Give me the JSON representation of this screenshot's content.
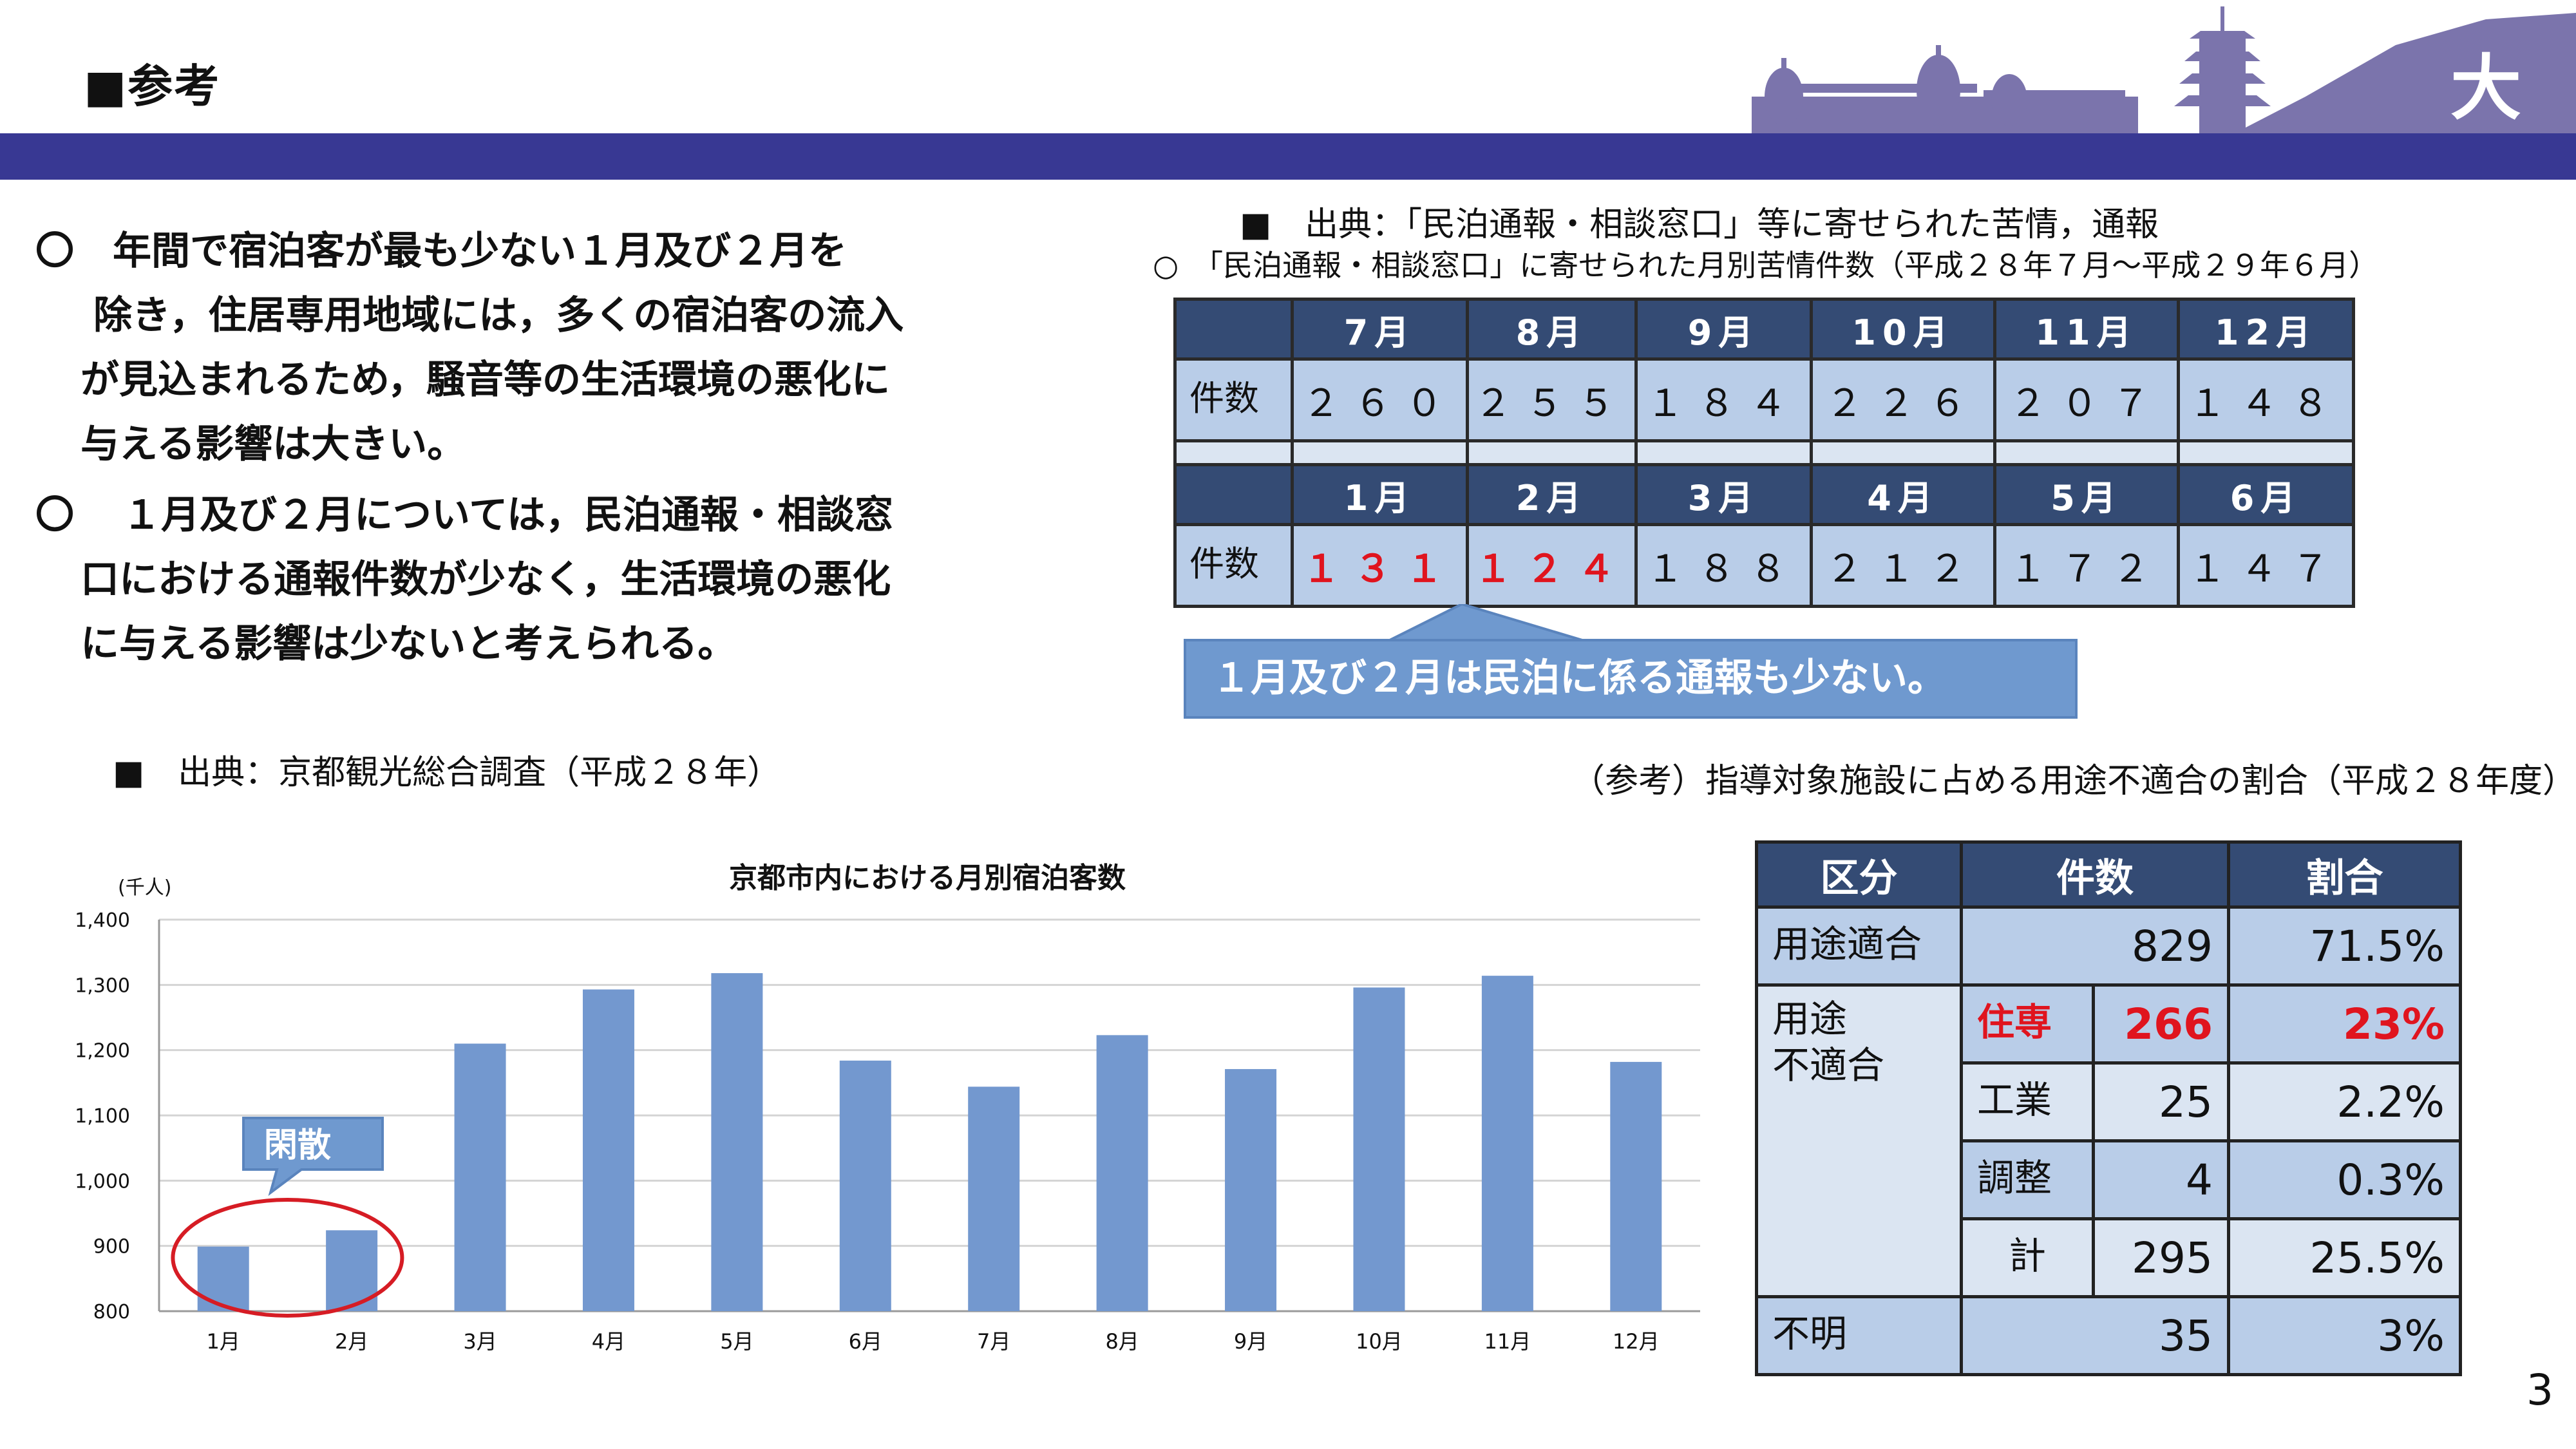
{
  "header": {
    "title": "■参考",
    "city_logo_char": "大"
  },
  "left_text": {
    "bullet1": {
      "marker": "〇",
      "lines": [
        "年間で宿泊客が最も少ない１月及び２月を",
        "除き，住居専用地域には，多くの宿泊客の流入",
        "が見込まれるため，騒音等の生活環境の悪化に",
        "与える影響は大きい。"
      ]
    },
    "bullet2": {
      "marker": "〇",
      "lines": [
        "１月及び２月については，民泊通報・相談窓",
        "口における通報件数が少なく，生活環境の悪化",
        "に与える影響は少ないと考えられる。"
      ]
    }
  },
  "right_top": {
    "source": "■　出典：「民泊通報・相談窓口」等に寄せられた苦情，通報",
    "caption": "○　「民泊通報・相談窓口」に寄せられた月別苦情件数（平成２８年７月～平成２９年６月）",
    "row_label": "件数",
    "months_a": [
      "7月",
      "8月",
      "9月",
      "10月",
      "11月",
      "12月"
    ],
    "counts_a": [
      "２６０",
      "２５５",
      "１８４",
      "２２６",
      "２０７",
      "１４８"
    ],
    "months_b": [
      "1月",
      "2月",
      "3月",
      "4月",
      "5月",
      "6月"
    ],
    "counts_b": [
      "１３１",
      "１２４",
      "１８８",
      "２１２",
      "１７２",
      "１４７"
    ],
    "callout": "１月及び２月は民泊に係る通報も少ない。"
  },
  "chart_source": "■　出典：京都観光総合調査（平成２８年）",
  "chart_data": {
    "type": "bar",
    "title": "京都市内における月別宿泊客数",
    "ylabel": "(千人)",
    "categories": [
      "1月",
      "2月",
      "3月",
      "4月",
      "5月",
      "6月",
      "7月",
      "8月",
      "9月",
      "10月",
      "11月",
      "12月"
    ],
    "values": [
      899,
      924,
      1210,
      1293,
      1318,
      1184,
      1144,
      1223,
      1171,
      1296,
      1314,
      1182
    ],
    "ylim": [
      800,
      1400
    ],
    "yticks": [
      "800",
      "900",
      "1,000",
      "1,100",
      "1,200",
      "1,300",
      "1,400"
    ],
    "grid": true,
    "legend": "none",
    "bar_color": "#7398cf",
    "annotation": "閑散",
    "annotation_color": "#6f99cf",
    "highlight_color": "#d61c24"
  },
  "ratio_table": {
    "caption": "（参考）指導対象施設に占める用途不適合の割合（平成２８年度）",
    "headers": [
      "区分",
      "件数",
      "割合"
    ],
    "suitable": {
      "label": "用途適合",
      "count": "829",
      "pct": "71.5%"
    },
    "unsuitable_label_1": "用途",
    "unsuitable_label_2": "不適合",
    "rows": [
      {
        "label": "住専",
        "count": "266",
        "pct": "23%"
      },
      {
        "label": "工業",
        "count": "25",
        "pct": "2.2%"
      },
      {
        "label": "調整",
        "count": "4",
        "pct": "0.3%"
      },
      {
        "label": "計",
        "count": "295",
        "pct": "25.5%"
      }
    ],
    "unknown": {
      "label": "不明",
      "count": "35",
      "pct": "3%"
    }
  },
  "page_number": "3",
  "colors": {
    "band": "#383893",
    "table_header": "#344b74",
    "cell_light": "#b9cde8",
    "alert_red": "#e0141e"
  }
}
